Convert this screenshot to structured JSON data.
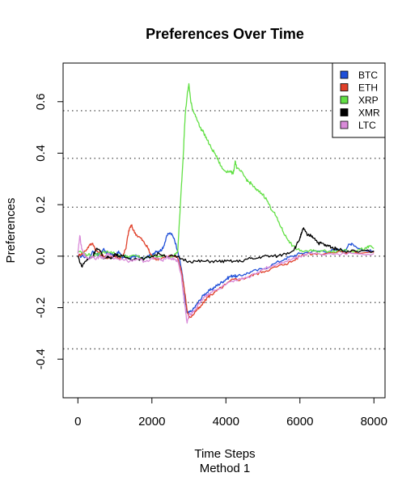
{
  "chart_data": {
    "type": "line",
    "title": "Preferences Over Time",
    "xlabel": "Time Steps",
    "xlabel2": "Method 1",
    "ylabel": "Preferences",
    "xlim": [
      -400,
      8300
    ],
    "ylim": [
      -0.55,
      0.75
    ],
    "x_ticks": [
      "0",
      "2000",
      "4000",
      "6000",
      "8000"
    ],
    "y_ticks": [
      "-0.4",
      "-0.2",
      "0.0",
      "0.2",
      "0.4",
      "0.6"
    ],
    "reference_lines_y": [
      -0.36,
      -0.18,
      0.0,
      0.19,
      0.38,
      0.565
    ],
    "legend_position": "top-right",
    "series": [
      {
        "name": "BTC",
        "color": "#1f4fd8",
        "x": [
          0,
          150,
          300,
          400,
          500,
          600,
          700,
          800,
          900,
          1000,
          1100,
          1200,
          1300,
          1400,
          1500,
          1600,
          1700,
          1800,
          1900,
          2000,
          2100,
          2200,
          2300,
          2400,
          2500,
          2600,
          2700,
          2800,
          2850,
          2900,
          2950,
          3000,
          3100,
          3200,
          3300,
          3400,
          3500,
          3600,
          3700,
          3800,
          3900,
          4000,
          4100,
          4200,
          4300,
          4500,
          4700,
          5000,
          5300,
          5600,
          5800,
          6000,
          6200,
          6500,
          6800,
          7000,
          7200,
          7300,
          7400,
          7600,
          7800,
          8000
        ],
        "y": [
          0.0,
          0.0,
          -0.01,
          0.02,
          0.01,
          0.0,
          0.03,
          0.01,
          0.01,
          0.0,
          0.02,
          -0.01,
          0.0,
          -0.01,
          0.0,
          0.0,
          -0.01,
          -0.01,
          0.0,
          0.0,
          0.02,
          0.02,
          0.03,
          0.08,
          0.09,
          0.07,
          0.02,
          -0.05,
          -0.1,
          -0.17,
          -0.22,
          -0.22,
          -0.21,
          -0.19,
          -0.17,
          -0.15,
          -0.14,
          -0.13,
          -0.12,
          -0.11,
          -0.1,
          -0.09,
          -0.08,
          -0.075,
          -0.08,
          -0.07,
          -0.06,
          -0.05,
          -0.03,
          -0.01,
          0.0,
          0.01,
          0.015,
          0.02,
          0.02,
          0.025,
          0.02,
          0.04,
          0.05,
          0.03,
          0.02,
          0.02
        ]
      },
      {
        "name": "ETH",
        "color": "#e0402a",
        "x": [
          0,
          100,
          200,
          300,
          400,
          500,
          600,
          700,
          800,
          900,
          1000,
          1100,
          1200,
          1300,
          1350,
          1400,
          1450,
          1500,
          1600,
          1700,
          1800,
          1900,
          1950,
          2000,
          2100,
          2200,
          2400,
          2600,
          2700,
          2800,
          2900,
          2950,
          3000,
          3100,
          3200,
          3300,
          3400,
          3500,
          3600,
          3700,
          3800,
          4000,
          4200,
          4400,
          4600,
          4800,
          5000,
          5200,
          5400,
          5600,
          5800,
          6000,
          6200,
          6500,
          7000,
          7500,
          8000
        ],
        "y": [
          0.0,
          0.01,
          0.02,
          0.04,
          0.05,
          0.02,
          0.01,
          0.0,
          -0.01,
          0.0,
          0.0,
          -0.01,
          0.0,
          0.03,
          0.08,
          0.11,
          0.12,
          0.1,
          0.08,
          0.07,
          0.05,
          0.03,
          0.01,
          0.0,
          -0.01,
          -0.01,
          0.0,
          0.0,
          -0.01,
          -0.06,
          -0.15,
          -0.21,
          -0.24,
          -0.23,
          -0.21,
          -0.2,
          -0.18,
          -0.16,
          -0.15,
          -0.14,
          -0.13,
          -0.11,
          -0.09,
          -0.09,
          -0.08,
          -0.07,
          -0.06,
          -0.05,
          -0.04,
          -0.03,
          -0.02,
          0.0,
          0.01,
          0.01,
          0.015,
          0.015,
          0.015
        ]
      },
      {
        "name": "XRP",
        "color": "#62e045",
        "x": [
          0,
          200,
          400,
          600,
          800,
          1000,
          1200,
          1400,
          1600,
          1800,
          2000,
          2200,
          2400,
          2600,
          2700,
          2750,
          2800,
          2850,
          2900,
          2950,
          3000,
          3050,
          3100,
          3200,
          3300,
          3400,
          3500,
          3600,
          3700,
          3800,
          3900,
          4000,
          4100,
          4200,
          4250,
          4300,
          4400,
          4500,
          4600,
          4700,
          4800,
          4900,
          5000,
          5100,
          5200,
          5300,
          5400,
          5500,
          5600,
          5700,
          5800,
          6000,
          6200,
          6400,
          6600,
          6800,
          7000,
          7200,
          7400,
          7600,
          7800,
          7900,
          8000
        ],
        "y": [
          0.02,
          0.01,
          0.0,
          0.01,
          0.02,
          0.01,
          0.0,
          0.0,
          0.0,
          -0.01,
          0.0,
          0.0,
          0.0,
          0.0,
          0.02,
          0.15,
          0.28,
          0.4,
          0.55,
          0.62,
          0.67,
          0.6,
          0.57,
          0.54,
          0.5,
          0.48,
          0.45,
          0.42,
          0.4,
          0.37,
          0.34,
          0.33,
          0.33,
          0.32,
          0.37,
          0.34,
          0.33,
          0.31,
          0.29,
          0.28,
          0.26,
          0.25,
          0.24,
          0.22,
          0.19,
          0.17,
          0.14,
          0.11,
          0.08,
          0.06,
          0.04,
          0.02,
          0.02,
          0.02,
          0.02,
          0.02,
          0.02,
          0.025,
          0.02,
          0.025,
          0.03,
          0.04,
          0.03
        ]
      },
      {
        "name": "XMR",
        "color": "#000000",
        "x": [
          0,
          100,
          200,
          300,
          400,
          500,
          600,
          700,
          800,
          900,
          1000,
          1100,
          1200,
          1400,
          1600,
          1800,
          2000,
          2200,
          2400,
          2600,
          2800,
          3000,
          3200,
          3400,
          3600,
          3800,
          4000,
          4200,
          4400,
          4600,
          4800,
          5000,
          5200,
          5400,
          5600,
          5800,
          5900,
          6000,
          6050,
          6100,
          6200,
          6300,
          6400,
          6500,
          6600,
          6700,
          6800,
          6900,
          7000,
          7200,
          7500,
          8000
        ],
        "y": [
          0.0,
          -0.04,
          -0.02,
          -0.01,
          0.0,
          0.03,
          0.02,
          -0.01,
          0.0,
          -0.01,
          0.01,
          0.0,
          0.0,
          -0.01,
          -0.01,
          -0.01,
          0.0,
          0.01,
          0.0,
          0.0,
          -0.01,
          -0.02,
          -0.02,
          -0.02,
          -0.02,
          -0.02,
          -0.02,
          -0.02,
          -0.02,
          -0.01,
          -0.01,
          0.0,
          0.0,
          0.0,
          0.01,
          0.02,
          0.04,
          0.07,
          0.09,
          0.11,
          0.08,
          0.08,
          0.07,
          0.05,
          0.05,
          0.04,
          0.04,
          0.03,
          0.03,
          0.02,
          0.02,
          0.02
        ]
      },
      {
        "name": "LTC",
        "color": "#d98ad9",
        "x": [
          0,
          50,
          100,
          150,
          200,
          300,
          400,
          500,
          600,
          700,
          800,
          900,
          1000,
          1200,
          1400,
          1600,
          1800,
          2000,
          2200,
          2300,
          2400,
          2500,
          2600,
          2700,
          2800,
          2850,
          2900,
          2950,
          3000,
          3100,
          3200,
          3300,
          3400,
          3500,
          3600,
          3800,
          4000,
          4200,
          4400,
          4600,
          4800,
          5000,
          5200,
          5400,
          5600,
          5800,
          6000,
          6200,
          6500,
          7000,
          7500,
          8000
        ],
        "y": [
          0.01,
          0.08,
          0.03,
          0.01,
          0.0,
          -0.01,
          0.0,
          -0.01,
          0.0,
          -0.01,
          0.01,
          0.0,
          -0.01,
          -0.01,
          -0.02,
          -0.01,
          -0.02,
          -0.01,
          -0.01,
          -0.02,
          0.0,
          -0.01,
          -0.01,
          -0.02,
          -0.08,
          -0.15,
          -0.2,
          -0.26,
          -0.23,
          -0.22,
          -0.2,
          -0.18,
          -0.16,
          -0.15,
          -0.14,
          -0.13,
          -0.11,
          -0.1,
          -0.09,
          -0.08,
          -0.07,
          -0.05,
          -0.04,
          -0.03,
          -0.02,
          -0.01,
          0.0,
          0.01,
          0.01,
          0.01,
          0.01,
          0.01
        ]
      }
    ]
  }
}
